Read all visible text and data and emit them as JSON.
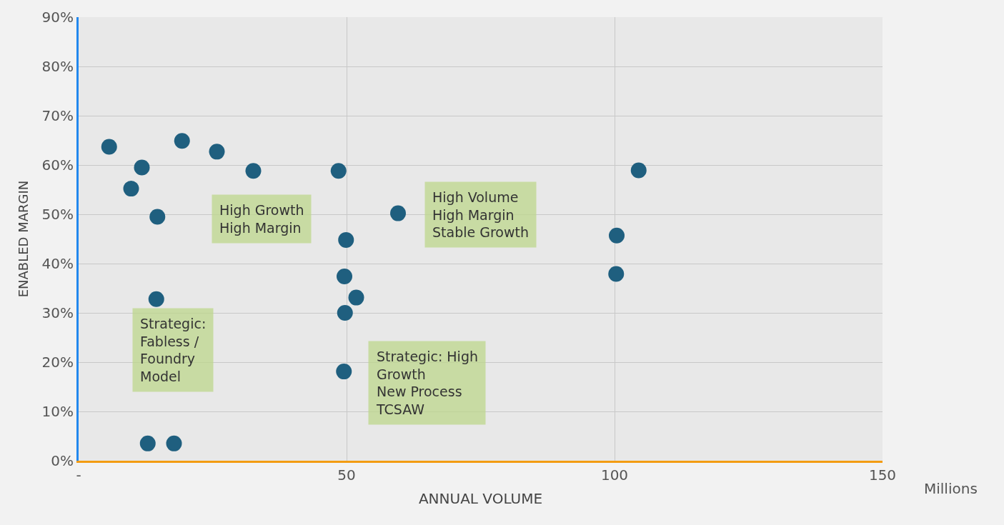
{
  "chart_data": {
    "type": "scatter",
    "xlabel": "ANNUAL VOLUME",
    "ylabel": "ENABLED MARGIN",
    "x": [
      5.7,
      19.3,
      25.8,
      11.8,
      32.6,
      9.8,
      14.7,
      14.5,
      12.9,
      17.8,
      48.5,
      59.6,
      49.9,
      49.6,
      51.8,
      49.7,
      49.5,
      104.5,
      100.4,
      100.3
    ],
    "series": [
      {
        "color": "#1f5f7f",
        "values": [
          63.7,
          64.9,
          62.7,
          59.5,
          58.8,
          55.2,
          49.5,
          32.8,
          3.5,
          3.5,
          58.8,
          50.2,
          44.8,
          37.4,
          33.1,
          30.0,
          18.1,
          58.9,
          45.7,
          37.9
        ]
      }
    ],
    "xlim": [
      0,
      150
    ],
    "xticks": [
      {
        "value": 0,
        "label": "-"
      },
      50,
      100,
      150
    ],
    "ylim": [
      0,
      90
    ],
    "yticks": [
      {
        "value": 0,
        "label": "0%"
      },
      {
        "value": 10,
        "label": "10%"
      },
      {
        "value": 20,
        "label": "20%"
      },
      {
        "value": 30,
        "label": "30%"
      },
      {
        "value": 40,
        "label": "40%"
      },
      {
        "value": 50,
        "label": "50%"
      },
      {
        "value": 60,
        "label": "60%"
      },
      {
        "value": 70,
        "label": "70%"
      },
      {
        "value": 80,
        "label": "80%"
      },
      {
        "value": 90,
        "label": "90%"
      }
    ],
    "grid": true,
    "marker": "circle",
    "annotations": [
      "High Growth\nHigh Margin",
      "High Volume\nHigh Margin\nStable Growth",
      "Strategic:\nFabless /\nFoundry\nModel",
      "Strategic: High\nGrowth\nNew Process\nTCSAW",
      "Millions"
    ]
  }
}
